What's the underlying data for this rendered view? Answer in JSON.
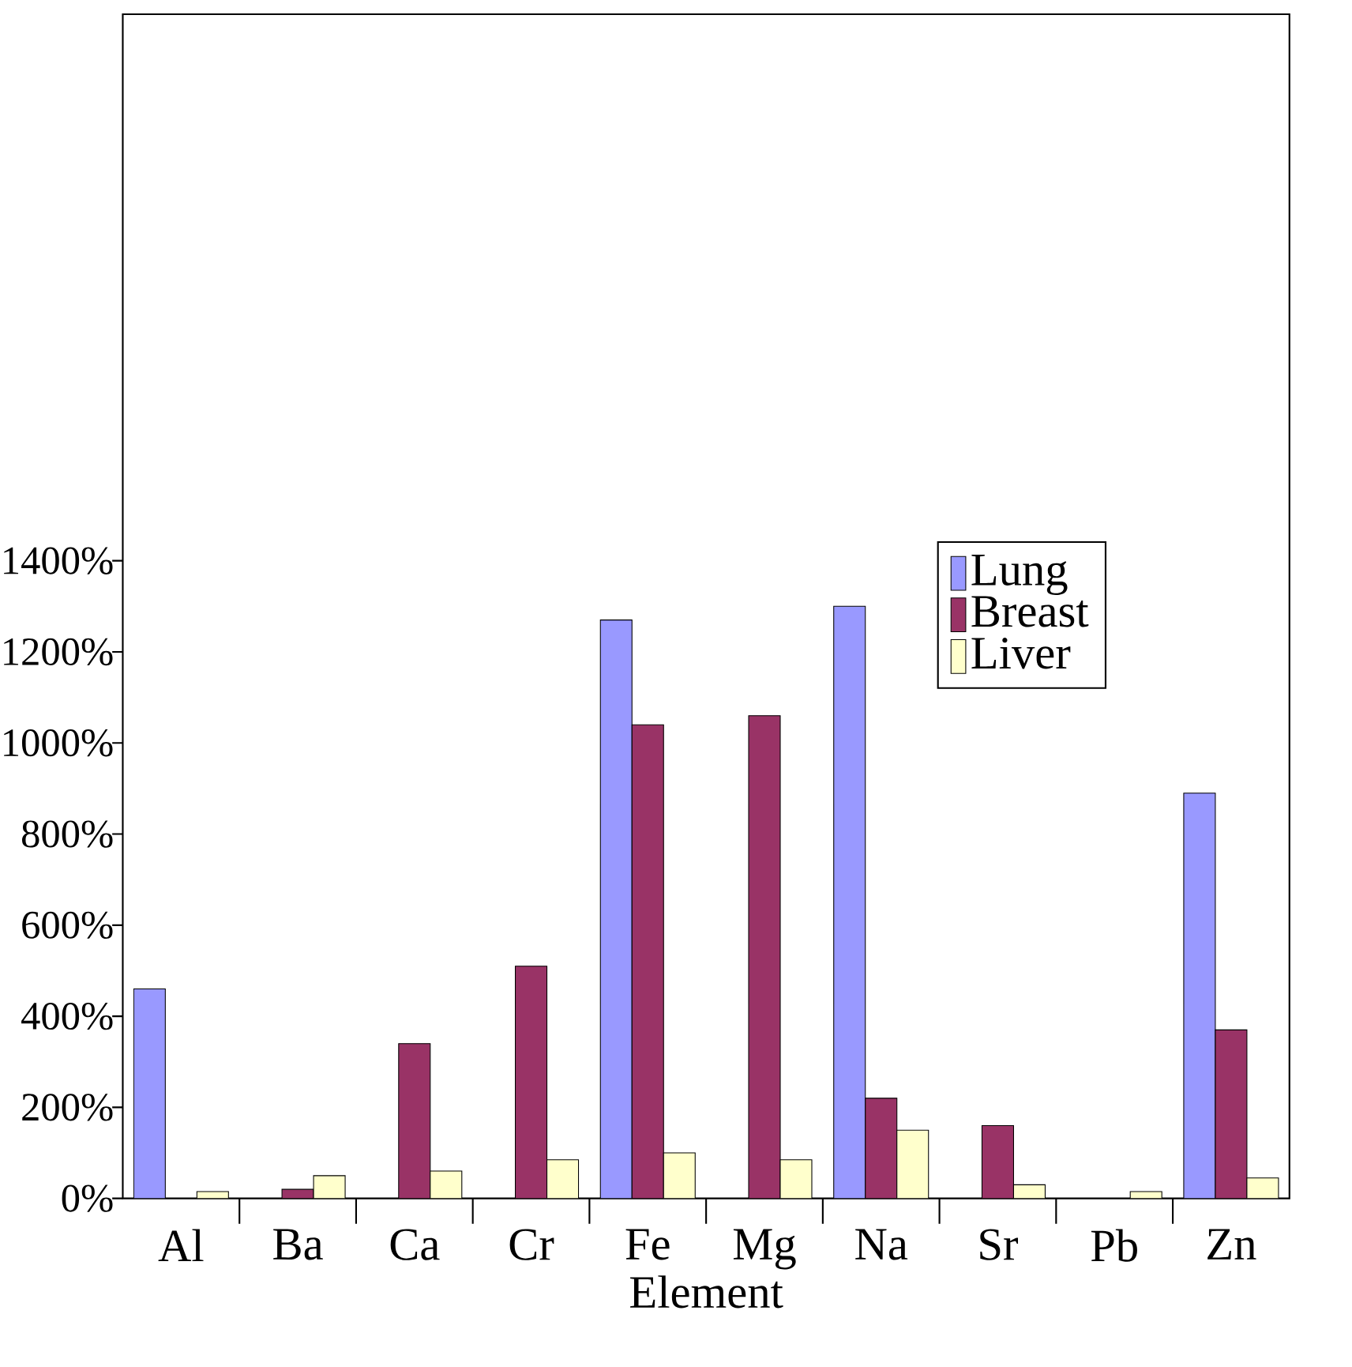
{
  "chart_data": {
    "type": "bar",
    "xlabel": "Element",
    "categories": [
      "Al",
      "Ba",
      "Ca",
      "Cr",
      "Fe",
      "Mg",
      "Na",
      "Sr",
      "Pb",
      "Zn"
    ],
    "series": [
      {
        "name": "Lung",
        "color": "#9999ff",
        "values": [
          460,
          null,
          null,
          null,
          1270,
          null,
          1300,
          null,
          null,
          890
        ]
      },
      {
        "name": "Breast",
        "color": "#993366",
        "values": [
          null,
          20,
          340,
          510,
          1040,
          1060,
          220,
          160,
          null,
          370
        ]
      },
      {
        "name": "Liver",
        "color": "#ffffcc",
        "values": [
          15,
          50,
          60,
          85,
          100,
          85,
          150,
          30,
          15,
          45
        ]
      }
    ],
    "ylim": [
      0,
      2600
    ],
    "yticks": [
      {
        "value": 0,
        "label": "0%"
      },
      {
        "value": 200,
        "label": "200%"
      },
      {
        "value": 400,
        "label": "400%"
      },
      {
        "value": 600,
        "label": "600%"
      },
      {
        "value": 800,
        "label": "800%"
      },
      {
        "value": 1000,
        "label": "1000%"
      },
      {
        "value": 1200,
        "label": "1200%"
      },
      {
        "value": 1400,
        "label": "1400%"
      }
    ],
    "grid": false,
    "legend": "right"
  }
}
